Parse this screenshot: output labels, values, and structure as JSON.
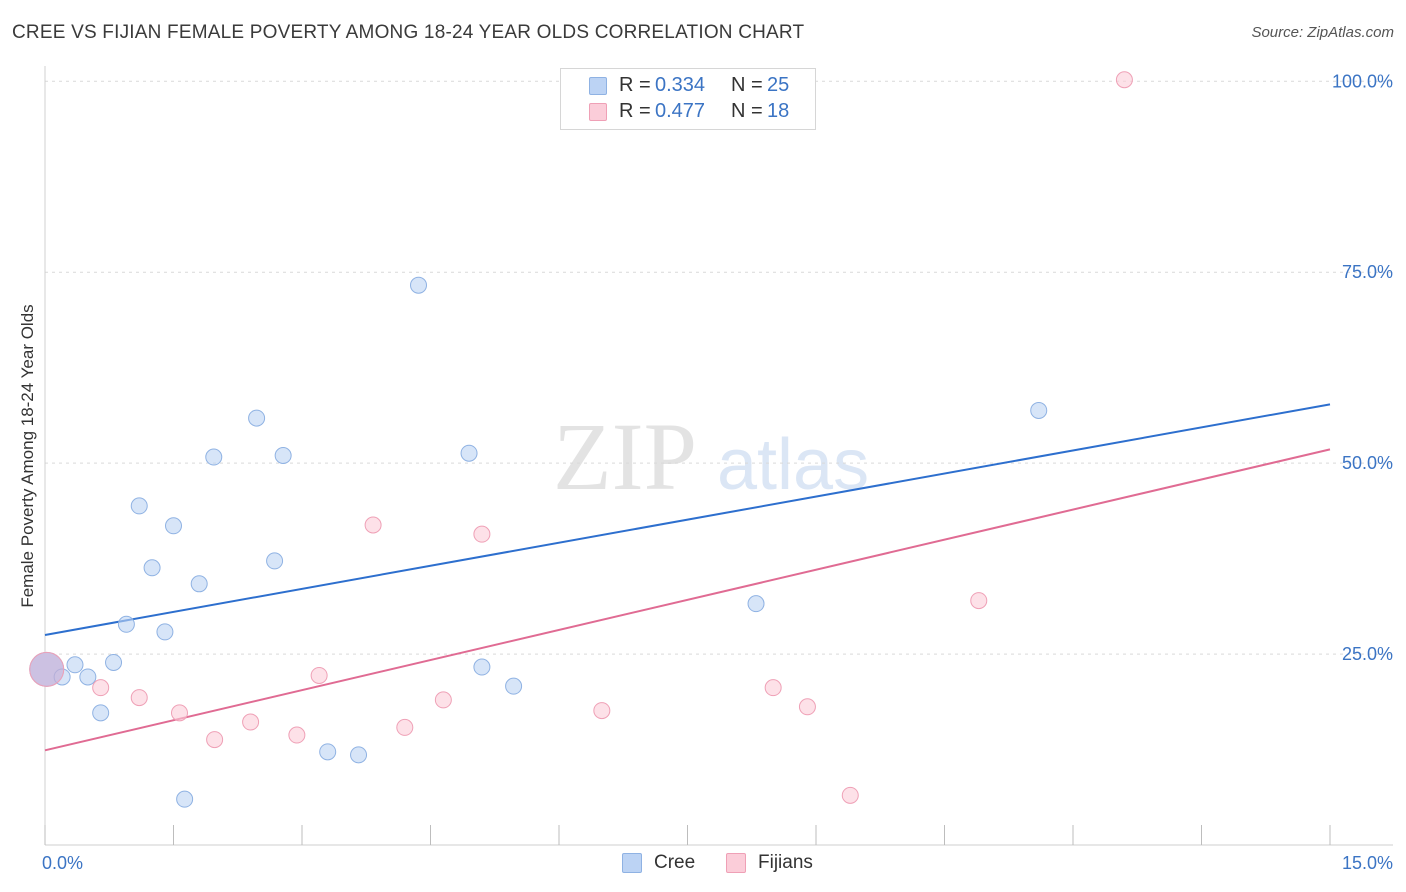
{
  "header": {
    "title": "CREE VS FIJIAN FEMALE POVERTY AMONG 18-24 YEAR OLDS CORRELATION CHART",
    "source": "Source: ZipAtlas.com"
  },
  "legend": {
    "series": [
      {
        "r_label": "R =",
        "r_value": "0.334",
        "n_label": "N =",
        "n_value": "25"
      },
      {
        "r_label": "R =",
        "r_value": "0.477",
        "n_label": "N =",
        "n_value": "18"
      }
    ]
  },
  "bottom_legend": {
    "cree": "Cree",
    "fijians": "Fijians"
  },
  "watermark": {
    "zip": "ZIP",
    "atlas": "atlas"
  },
  "colors": {
    "cree_fill": "#bcd3f4",
    "cree_stroke": "#8fb2e3",
    "cree_line": "#2d6fce",
    "fijian_fill": "#fbcdd9",
    "fijian_stroke": "#efa0b6",
    "fijian_line": "#e06b93",
    "tick_label": "#3b74c4",
    "grid": "#d9d9d9"
  },
  "chart_data": {
    "type": "scatter",
    "title": "CREE VS FIJIAN FEMALE POVERTY AMONG 18-24 YEAR OLDS CORRELATION CHART",
    "xlabel": "",
    "ylabel": "Female Poverty Among 18-24 Year Olds",
    "xlim": [
      0,
      15
    ],
    "ylim": [
      0,
      102
    ],
    "x_tick_labels": [
      {
        "value": 0,
        "label": "0.0%"
      },
      {
        "value": 15,
        "label": "15.0%"
      }
    ],
    "y_tick_labels": [
      {
        "value": 25,
        "label": "25.0%"
      },
      {
        "value": 50,
        "label": "50.0%"
      },
      {
        "value": 75,
        "label": "75.0%"
      },
      {
        "value": 100,
        "label": "100.0%"
      }
    ],
    "y_gridlines": [
      25,
      50,
      75,
      100
    ],
    "grid": true,
    "legend_position": "top-center",
    "series": [
      {
        "name": "Cree",
        "r": 0.334,
        "n": 25,
        "trend": {
          "x": [
            0,
            15
          ],
          "y": [
            27.5,
            57.7
          ]
        },
        "points": [
          {
            "x": 0.02,
            "y": 23.0,
            "big": true
          },
          {
            "x": 0.2,
            "y": 22.0
          },
          {
            "x": 0.35,
            "y": 23.6
          },
          {
            "x": 0.5,
            "y": 22.0
          },
          {
            "x": 0.65,
            "y": 17.3
          },
          {
            "x": 0.8,
            "y": 23.9
          },
          {
            "x": 0.95,
            "y": 28.9
          },
          {
            "x": 1.1,
            "y": 44.4
          },
          {
            "x": 1.25,
            "y": 36.3
          },
          {
            "x": 1.4,
            "y": 27.9
          },
          {
            "x": 1.5,
            "y": 41.8
          },
          {
            "x": 1.63,
            "y": 6.0
          },
          {
            "x": 1.8,
            "y": 34.2
          },
          {
            "x": 1.97,
            "y": 50.8
          },
          {
            "x": 2.47,
            "y": 55.9
          },
          {
            "x": 2.68,
            "y": 37.2
          },
          {
            "x": 2.78,
            "y": 51.0
          },
          {
            "x": 3.3,
            "y": 12.2
          },
          {
            "x": 3.66,
            "y": 11.8
          },
          {
            "x": 4.36,
            "y": 73.3
          },
          {
            "x": 4.95,
            "y": 51.3
          },
          {
            "x": 5.1,
            "y": 23.3
          },
          {
            "x": 5.47,
            "y": 20.8
          },
          {
            "x": 8.3,
            "y": 31.6
          },
          {
            "x": 11.6,
            "y": 56.9
          }
        ]
      },
      {
        "name": "Fijians",
        "r": 0.477,
        "n": 18,
        "trend": {
          "x": [
            0,
            15
          ],
          "y": [
            12.4,
            51.8
          ]
        },
        "points": [
          {
            "x": 0.02,
            "y": 23.0,
            "big": true
          },
          {
            "x": 0.65,
            "y": 20.6
          },
          {
            "x": 1.1,
            "y": 19.3
          },
          {
            "x": 1.57,
            "y": 17.3
          },
          {
            "x": 1.98,
            "y": 13.8
          },
          {
            "x": 2.4,
            "y": 16.1
          },
          {
            "x": 2.94,
            "y": 14.4
          },
          {
            "x": 3.2,
            "y": 22.2
          },
          {
            "x": 3.83,
            "y": 41.9
          },
          {
            "x": 4.2,
            "y": 15.4
          },
          {
            "x": 4.65,
            "y": 19.0
          },
          {
            "x": 5.1,
            "y": 40.7
          },
          {
            "x": 6.5,
            "y": 17.6
          },
          {
            "x": 8.5,
            "y": 20.6
          },
          {
            "x": 8.9,
            "y": 18.1
          },
          {
            "x": 9.4,
            "y": 6.5
          },
          {
            "x": 10.9,
            "y": 32.0
          },
          {
            "x": 12.6,
            "y": 100.2
          }
        ]
      }
    ]
  }
}
